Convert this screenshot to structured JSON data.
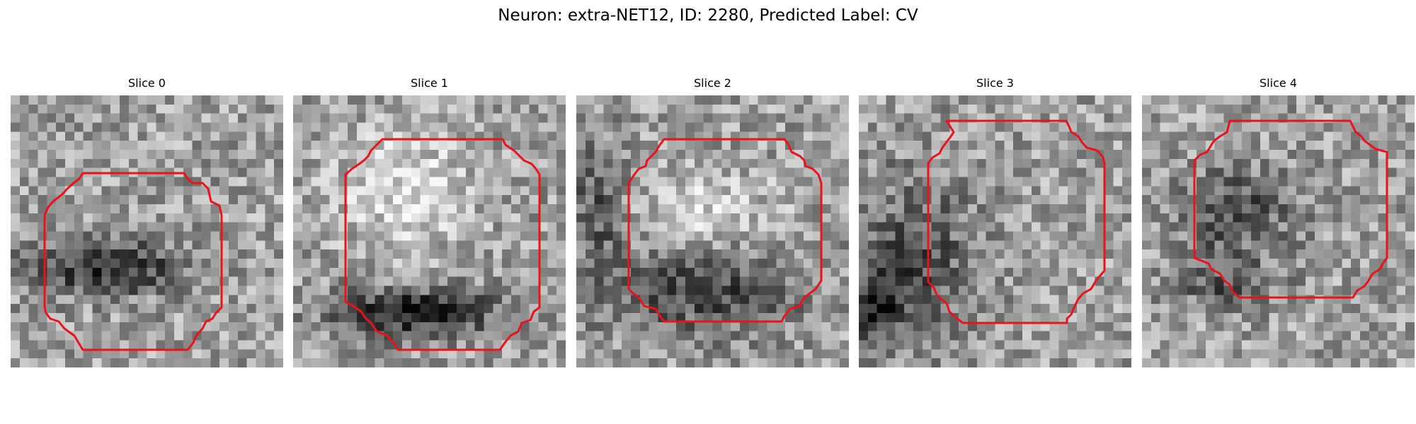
{
  "figure": {
    "title": "Neuron: extra-NET12, ID: 2280, Predicted Label: CV"
  },
  "panels": [
    {
      "title": "Slice 0"
    },
    {
      "title": "Slice 1"
    },
    {
      "title": "Slice 2"
    },
    {
      "title": "Slice 3"
    },
    {
      "title": "Slice 4"
    }
  ],
  "colors": {
    "contour": "#e8141a",
    "colormap": "gray"
  }
}
